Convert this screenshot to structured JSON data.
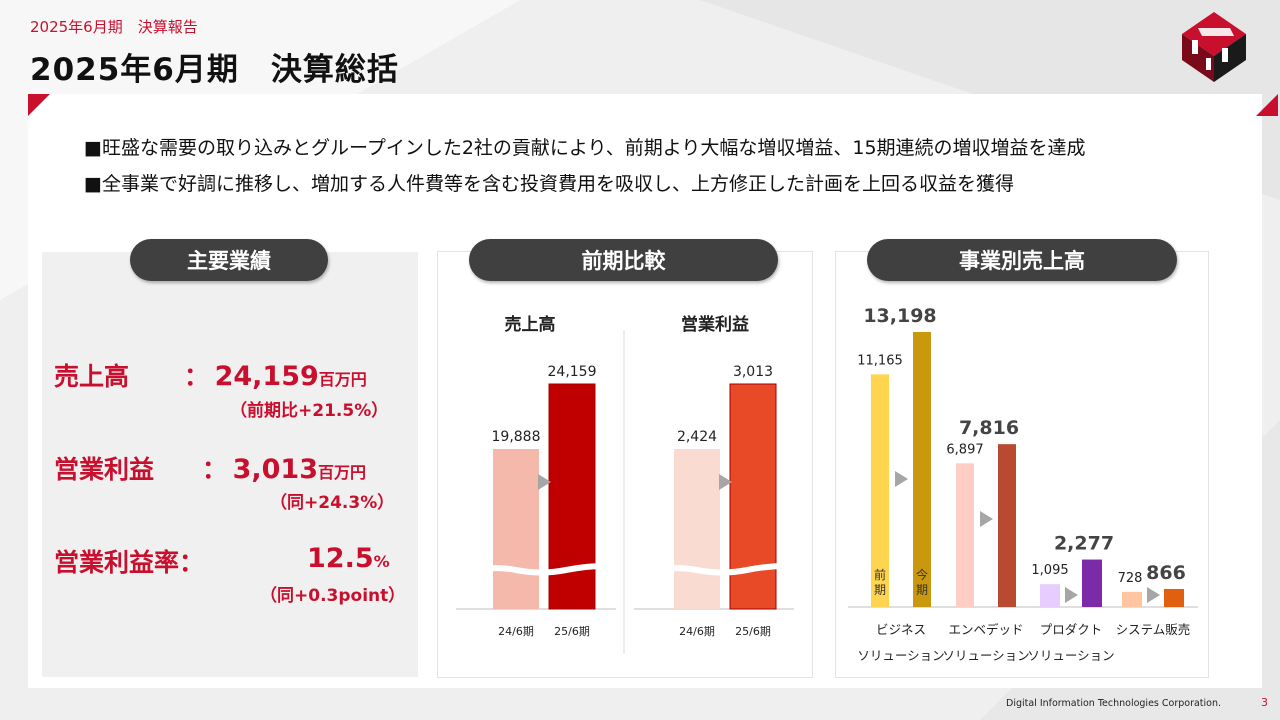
{
  "header": {
    "subtitle": "2025年6月期　決算報告",
    "title": "2025年6月期　決算総括"
  },
  "bullets": [
    "■旺盛な需要の取り込みとグループインした2社の貢献により、前期より大幅な増収増益、15期連続の増収増益を達成",
    "■全事業で好調に推移し、増加する人件費等を含む投資費用を吸収し、上方修正した計画を上回る収益を獲得"
  ],
  "sections": {
    "main": "主要業績",
    "compare": "前期比較",
    "segment": "事業別売上高"
  },
  "kpis": {
    "sales": {
      "label": "売上高",
      "colon": "：",
      "value": "24,159",
      "unit": "百万円",
      "note": "（前期比+21.5%）"
    },
    "op": {
      "label": "営業利益",
      "colon": "：",
      "value": "3,013",
      "unit": "百万円",
      "note": "（同+24.3%）"
    },
    "margin": {
      "label": "営業利益率：",
      "value": "12.5",
      "unit": "%",
      "note": "（同+0.3point）"
    }
  },
  "colors": {
    "accent": "#c8102e",
    "sales_prev": "#f4b9aa",
    "sales_curr": "#c00000",
    "op_prev": "#fadbd2",
    "op_curr": "#e84a27"
  },
  "chart_data": [
    {
      "type": "bar",
      "title": "売上高",
      "categories": [
        "24/6期",
        "25/6期"
      ],
      "values": [
        19888,
        24159
      ],
      "labels": [
        "19,888",
        "24,159"
      ],
      "axis_break": true
    },
    {
      "type": "bar",
      "title": "営業利益",
      "categories": [
        "24/6期",
        "25/6期"
      ],
      "values": [
        2424,
        3013
      ],
      "labels": [
        "2,424",
        "3,013"
      ],
      "axis_break": true
    },
    {
      "type": "bar",
      "categories": [
        "ビジネス\nソリューション",
        "エンベデッド\nソリューション",
        "プロダクト\nソリューション",
        "システム販売"
      ],
      "series": [
        {
          "name": "前期",
          "values": [
            11165,
            6897,
            1095,
            728
          ],
          "labels": [
            "11,165",
            "6,897",
            "1,095",
            "728"
          ],
          "colors": [
            "#ffd54f",
            "#ffcdc4",
            "#e6ccff",
            "#ffc4a0"
          ]
        },
        {
          "name": "今期",
          "values": [
            13198,
            7816,
            2277,
            866
          ],
          "labels": [
            "13,198",
            "7,816",
            "2,277",
            "866"
          ],
          "colors": [
            "#c9980c",
            "#b84a32",
            "#7b2aa8",
            "#e06010"
          ]
        }
      ],
      "inbar_labels": {
        "prev": "前\n期",
        "curr": "今\n期"
      }
    }
  ],
  "footer": {
    "company": "Digital Information Technologies Corporation.",
    "page": "3"
  }
}
